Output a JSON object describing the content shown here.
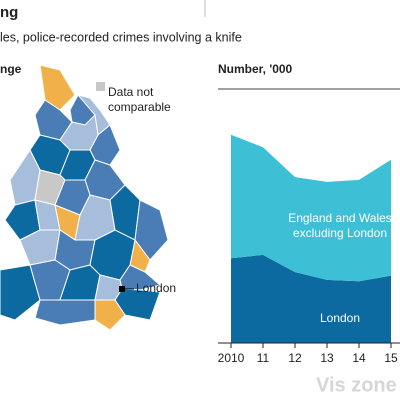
{
  "header": {
    "title": "ng",
    "subtitle": "les, police-recorded crimes involving a knife"
  },
  "map": {
    "legend_title": "nge",
    "legend_item": "Data not comparable",
    "label": "London"
  },
  "chart_data": {
    "type": "stacked_area",
    "axis_label": "Number, '000",
    "categories": [
      "2010",
      "11",
      "12",
      "13",
      "14",
      "15"
    ],
    "series": [
      {
        "name": "London",
        "color": "#0d6aa0",
        "values": [
          12.2,
          12.7,
          10.2,
          9.1,
          8.9,
          9.7
        ]
      },
      {
        "name": "England and Wales excluding London",
        "color": "#3dc0d5",
        "values": [
          17.8,
          15.5,
          13.7,
          14.1,
          14.6,
          16.7
        ]
      }
    ],
    "ylim": [
      0,
      35
    ]
  },
  "watermark": "Vis zone"
}
